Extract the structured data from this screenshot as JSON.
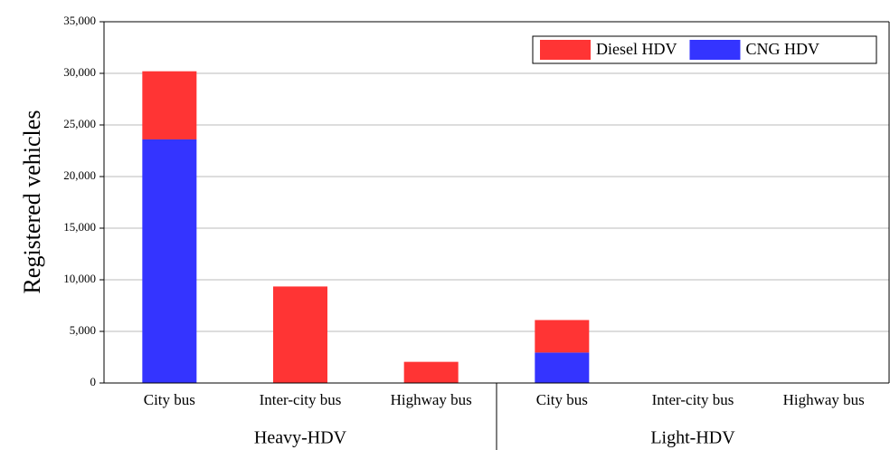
{
  "chart_data": {
    "type": "stacked_bar",
    "y_label": "Registered  vehicles",
    "categories": [
      "City bus",
      "Inter-city bus",
      "Highway bus",
      "City bus",
      "Inter-city bus",
      "Highway bus"
    ],
    "groups": [
      "Heavy-HDV",
      "Light-HDV"
    ],
    "series": [
      {
        "name": "CNG HDV",
        "color": "#3434ff",
        "values": [
          23600,
          0,
          0,
          2950,
          0,
          0
        ]
      },
      {
        "name": "Diesel HDV",
        "color": "#ff3434",
        "values": [
          6600,
          9350,
          2050,
          3150,
          0,
          0
        ]
      }
    ],
    "ylim": [
      0,
      35000
    ],
    "yticks": [
      0,
      {
        "value": 5000,
        "label": "5,000"
      },
      {
        "value": 10000,
        "label": "10,000"
      },
      {
        "value": 15000,
        "label": "15,000"
      },
      {
        "value": 20000,
        "label": "20,000"
      },
      {
        "value": 25000,
        "label": "25,000"
      },
      {
        "value": 30000,
        "label": "30,000"
      },
      {
        "value": 35000,
        "label": "35,000"
      }
    ],
    "grid": true,
    "legend": "top-right"
  }
}
